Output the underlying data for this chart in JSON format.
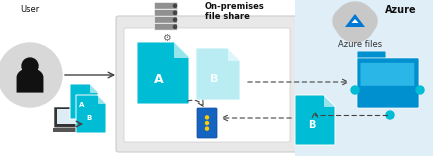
{
  "bg_color": "#ffffff",
  "local_box_color": "#e0e0e0",
  "azure_box_color": "#ddeeff",
  "title_onprem": "On-premises\nfile share",
  "title_azure": "Azure",
  "subtitle_azure": "Azure files",
  "label_user": "User",
  "cyan_dark": "#00bcd4",
  "cyan_light": "#b2ebf2",
  "blue_folder": "#0090d0",
  "arrow_color": "#444444",
  "dot_color": "#444444"
}
